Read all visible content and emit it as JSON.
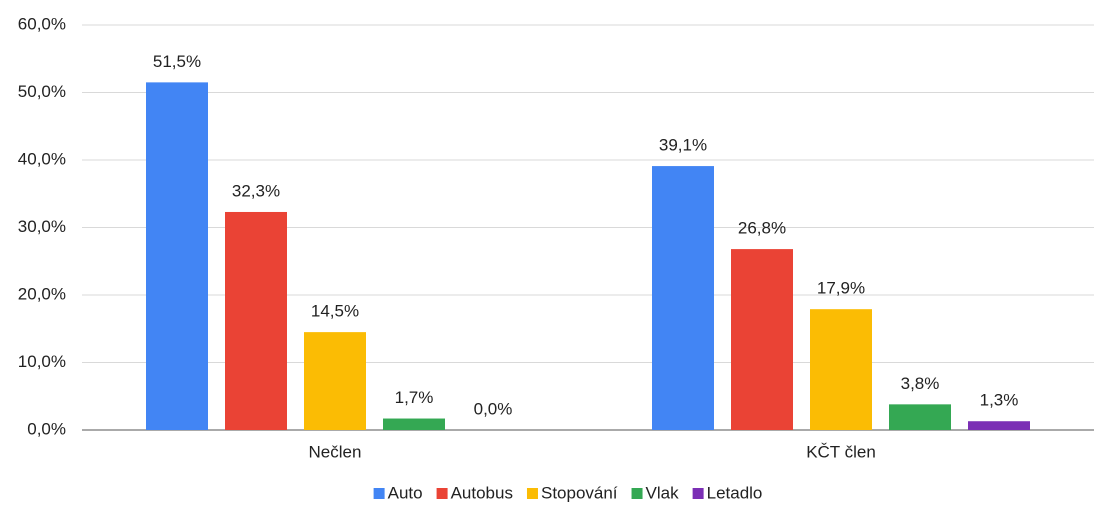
{
  "chart_data": {
    "type": "bar",
    "categories": [
      "Nečlen",
      "KČT člen"
    ],
    "series": [
      {
        "name": "Auto",
        "color": "#4285f4",
        "values": [
          51.5,
          39.1
        ],
        "value_labels": [
          "51,5%",
          "39,1%"
        ]
      },
      {
        "name": "Autobus",
        "color": "#ea4335",
        "values": [
          32.3,
          26.8
        ],
        "value_labels": [
          "32,3%",
          "26,8%"
        ]
      },
      {
        "name": "Stopování",
        "color": "#fbbc04",
        "values": [
          14.5,
          17.9
        ],
        "value_labels": [
          "14,5%",
          "17,9%"
        ]
      },
      {
        "name": "Vlak",
        "color": "#34a853",
        "values": [
          1.7,
          3.8
        ],
        "value_labels": [
          "1,7%",
          "3,8%"
        ]
      },
      {
        "name": "Letadlo",
        "color": "#7b2fb5",
        "values": [
          0.0,
          1.3
        ],
        "value_labels": [
          "0,0%",
          "1,3%"
        ]
      }
    ],
    "ylim": [
      0,
      60
    ],
    "yticks": [
      {
        "value": 0,
        "label": "0,0%"
      },
      {
        "value": 10,
        "label": "10,0%"
      },
      {
        "value": 20,
        "label": "20,0%"
      },
      {
        "value": 30,
        "label": "30,0%"
      },
      {
        "value": 40,
        "label": "40,0%"
      },
      {
        "value": 50,
        "label": "50,0%"
      },
      {
        "value": 60,
        "label": "60,0%"
      }
    ],
    "grid": true,
    "legend": "bottom"
  }
}
